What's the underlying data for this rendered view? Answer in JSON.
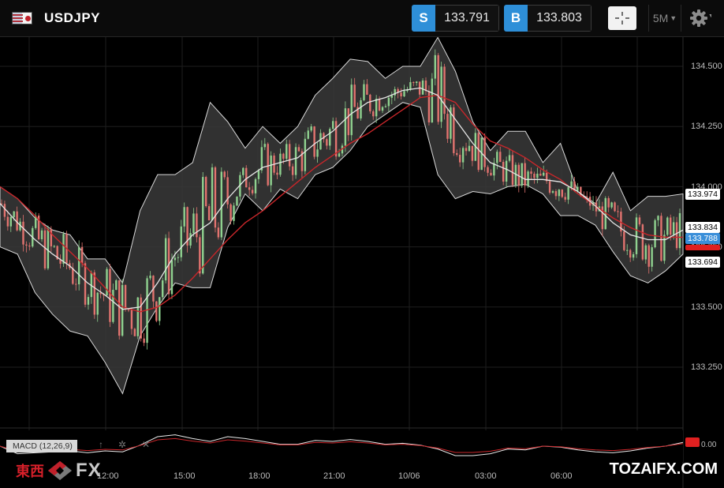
{
  "header": {
    "pair": "USDJPY",
    "flag_icon": "us-jp-flag-icon",
    "sell": {
      "label": "S",
      "price": "133.791"
    },
    "buy": {
      "label": "B",
      "price": "133.803"
    },
    "crosshair_icon": "crosshair-icon",
    "interval": "5M",
    "settings_icon": "gear-icon"
  },
  "colors": {
    "background": "#000000",
    "accent_blue": "#2e8fd8",
    "candle_up": "#8fd18f",
    "candle_down": "#e2736f",
    "band_fill": "#3a3a3a",
    "ma_red": "#c8262a",
    "ma_white": "#e6e6e6"
  },
  "y_axis": {
    "ticks": [
      "134.500",
      "134.250",
      "134.000",
      "133.750",
      "133.500",
      "133.250"
    ]
  },
  "price_tags": {
    "upper": "133.974",
    "mid": "133.834",
    "current": "133.788",
    "lower": "133.694"
  },
  "x_axis": {
    "ticks": [
      "12:00",
      "15:00",
      "18:00",
      "21:00",
      "10/06",
      "03:00",
      "06:00"
    ]
  },
  "indicator": {
    "label": "MACD (12,26,9)",
    "zero_label": "0.00"
  },
  "watermark": {
    "brand_jp": "東西",
    "brand_fx": "FX",
    "site": "TOZAIFX.COM"
  },
  "chart_data": {
    "type": "candlestick",
    "title": "",
    "symbol": "USDJPY",
    "interval": "5M",
    "ylim": [
      133.1,
      134.6
    ],
    "yticks": [
      133.25,
      133.5,
      133.75,
      134.0,
      134.25,
      134.5
    ],
    "grid": true,
    "overlays": [
      "bollinger-bands",
      "moving-average-white",
      "moving-average-red"
    ],
    "ma_white": [
      133.93,
      133.85,
      133.78,
      133.72,
      133.67,
      133.6,
      133.55,
      133.49,
      133.5,
      133.6,
      133.72,
      133.8,
      133.85,
      133.95,
      134.03,
      134.08,
      134.1,
      134.12,
      134.18,
      134.23,
      134.3,
      134.35,
      134.37,
      134.4,
      134.41,
      134.38,
      134.28,
      134.18,
      134.1,
      134.07,
      134.03,
      134.03,
      134.02,
      133.98,
      133.92,
      133.85,
      133.8,
      133.78,
      133.78,
      133.82
    ],
    "ma_red": [
      134.0,
      133.95,
      133.88,
      133.8,
      133.73,
      133.66,
      133.58,
      133.5,
      133.48,
      133.5,
      133.55,
      133.62,
      133.7,
      133.78,
      133.85,
      133.9,
      133.96,
      134.02,
      134.08,
      134.13,
      134.18,
      134.22,
      134.27,
      134.32,
      134.37,
      134.38,
      134.35,
      134.26,
      134.19,
      134.16,
      134.12,
      134.07,
      134.03,
      133.97,
      133.92,
      133.87,
      133.83,
      133.8,
      133.79,
      133.79
    ],
    "band_upper": [
      134.0,
      133.95,
      133.87,
      133.82,
      133.8,
      133.7,
      133.7,
      133.6,
      133.9,
      134.05,
      134.05,
      134.1,
      134.35,
      134.27,
      134.16,
      134.25,
      134.18,
      134.25,
      134.38,
      134.45,
      134.53,
      134.52,
      134.45,
      134.5,
      134.5,
      134.62,
      134.48,
      134.27,
      134.15,
      134.23,
      134.23,
      134.1,
      134.18,
      133.98,
      133.93,
      134.06,
      133.9,
      133.96,
      133.96,
      133.97
    ],
    "band_lower": [
      133.75,
      133.72,
      133.56,
      133.47,
      133.4,
      133.38,
      133.27,
      133.14,
      133.38,
      133.5,
      133.6,
      133.58,
      133.58,
      133.83,
      133.97,
      133.9,
      133.99,
      133.95,
      134.05,
      134.08,
      134.15,
      134.25,
      134.3,
      134.35,
      134.33,
      134.05,
      133.95,
      133.98,
      133.97,
      134.0,
      134.01,
      133.97,
      133.88,
      133.88,
      133.84,
      133.73,
      133.63,
      133.6,
      133.65,
      133.72
    ],
    "last_close": 133.788,
    "indicator": {
      "name": "MACD",
      "params": [
        12,
        26,
        9
      ]
    }
  }
}
